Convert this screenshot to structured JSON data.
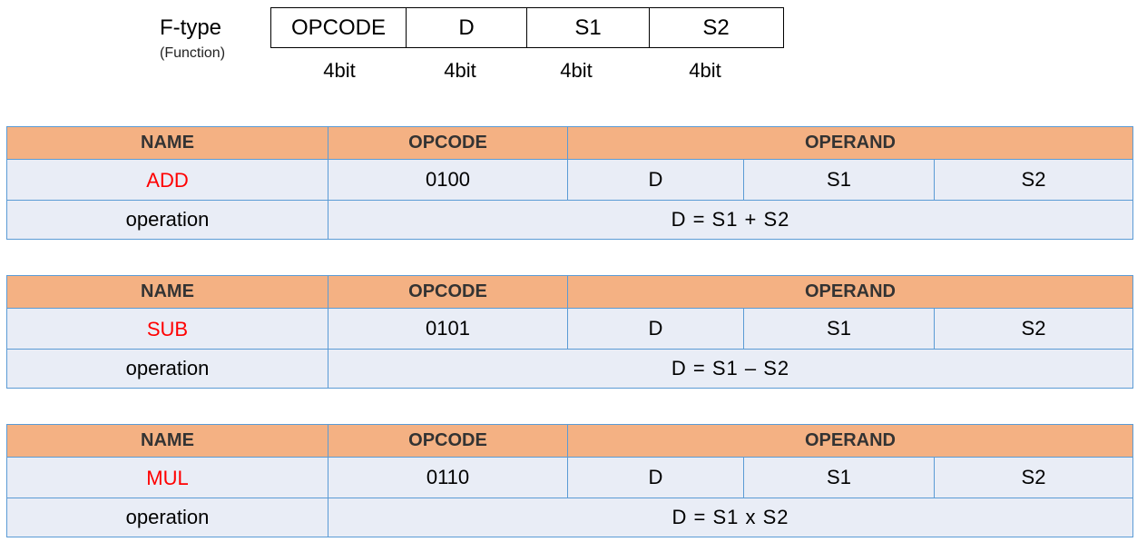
{
  "format": {
    "title": "F-type",
    "subtitle": "(Function)",
    "fields": [
      "OPCODE",
      "D",
      "S1",
      "S2"
    ],
    "bits": [
      "4bit",
      "4bit",
      "4bit",
      "4bit"
    ]
  },
  "headers": {
    "name": "NAME",
    "opcode": "OPCODE",
    "operand": "OPERAND"
  },
  "operation_label": "operation",
  "instructions": [
    {
      "name": "ADD",
      "opcode": "0100",
      "operands": [
        "D",
        "S1",
        "S2"
      ],
      "operation": "D = S1 + S2"
    },
    {
      "name": "SUB",
      "opcode": "0101",
      "operands": [
        "D",
        "S1",
        "S2"
      ],
      "operation": "D = S1 – S2"
    },
    {
      "name": "MUL",
      "opcode": "0110",
      "operands": [
        "D",
        "S1",
        "S2"
      ],
      "operation": "D = S1 x S2"
    }
  ],
  "colors": {
    "header_fill": "#f4b183",
    "row_fill": "#e9edf6",
    "border": "#5b9bd5",
    "name_text": "#ff0000"
  }
}
